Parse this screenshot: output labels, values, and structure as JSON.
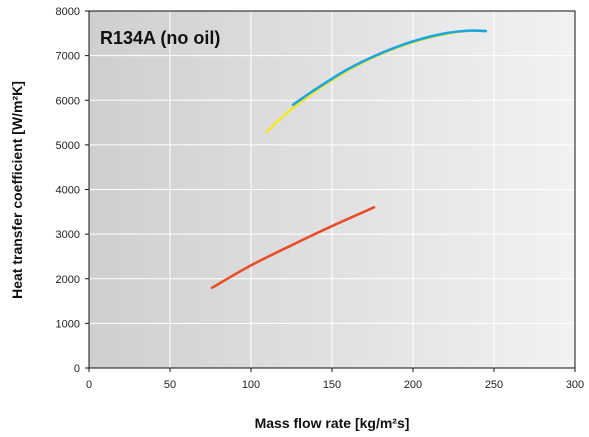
{
  "chart_data": {
    "type": "line",
    "title": "R134A (no oil)",
    "xlabel": "Mass flow rate [kg/m²s]",
    "ylabel": "Heat transfer coefficient [W/m²K]",
    "xlim": [
      0,
      300
    ],
    "ylim": [
      0,
      8000
    ],
    "xticks": [
      0,
      50,
      100,
      150,
      200,
      250,
      300
    ],
    "yticks": [
      0,
      1000,
      2000,
      3000,
      4000,
      5000,
      6000,
      7000,
      8000
    ],
    "xtick_labels": [
      "0",
      "50",
      "100",
      "150",
      "200",
      "250",
      "300"
    ],
    "ytick_labels": [
      "0",
      "1000",
      "2000",
      "3000",
      "4000",
      "5000",
      "6000",
      "7000",
      "8000"
    ],
    "grid": true,
    "legend": "none",
    "series": [
      {
        "color": "#f4e52a",
        "x": [
          110,
          125,
          150,
          175,
          200,
          225,
          238
        ],
        "y": [
          5300,
          5800,
          6450,
          6950,
          7300,
          7520,
          7560
        ]
      },
      {
        "color": "#1aa6df",
        "x": [
          126,
          140,
          160,
          180,
          200,
          220,
          235,
          245
        ],
        "y": [
          5900,
          6250,
          6700,
          7050,
          7320,
          7500,
          7560,
          7550
        ]
      },
      {
        "color": "#e84e27",
        "x": [
          76,
          100,
          125,
          150,
          176
        ],
        "y": [
          1800,
          2300,
          2750,
          3180,
          3600
        ]
      }
    ]
  }
}
